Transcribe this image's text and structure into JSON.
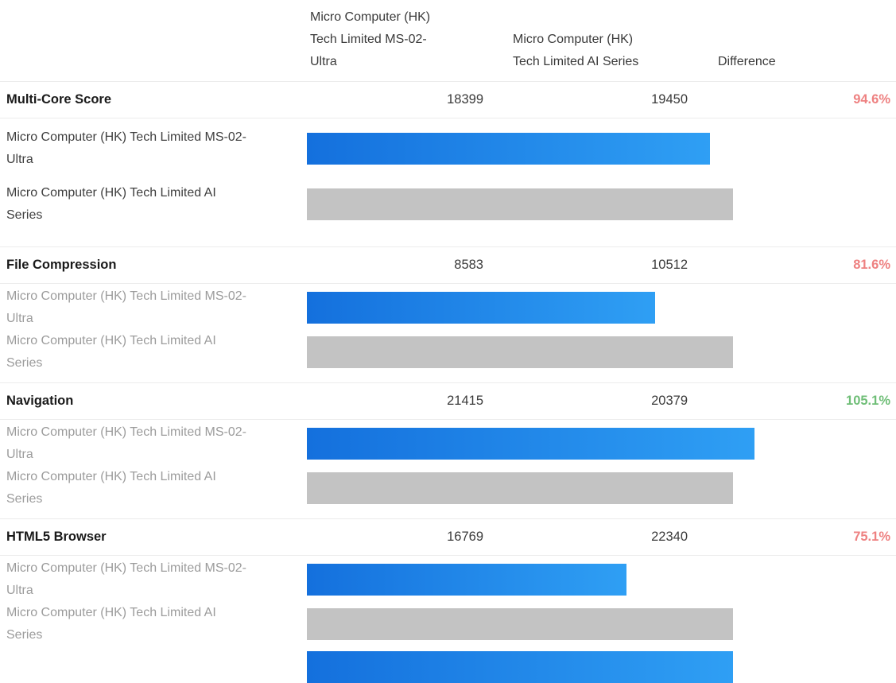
{
  "colors": {
    "blue_start": "#1470dd",
    "blue_end": "#2f9ff4",
    "gray_bar": "#c3c3c3",
    "diff_negative": "#ee8181",
    "diff_positive": "#6fbe77",
    "label_muted": "#9c9c9c"
  },
  "header": {
    "col1": "Micro Computer (HK) Tech Limited MS-02-Ultra",
    "col2": "Micro Computer (HK) Tech Limited AI Series",
    "col3": "Difference"
  },
  "device1": "Micro Computer (HK) Tech Limited MS-02-Ultra",
  "device2": "Micro Computer (HK) Tech Limited AI Series",
  "sections": [
    {
      "metric": "Multi-Core Score",
      "value1": "18399",
      "value2": "19450",
      "difference": "94.6%",
      "diff_type": "negative"
    },
    {
      "metric": "File Compression",
      "value1": "8583",
      "value2": "10512",
      "difference": "81.6%",
      "diff_type": "negative"
    },
    {
      "metric": "Navigation",
      "value1": "21415",
      "value2": "20379",
      "difference": "105.1%",
      "diff_type": "positive"
    },
    {
      "metric": "HTML5 Browser",
      "value1": "16769",
      "value2": "22340",
      "difference": "75.1%",
      "diff_type": "negative"
    }
  ],
  "chart_data": {
    "type": "bar",
    "orientation": "horizontal",
    "categories": [
      "Multi-Core Score",
      "File Compression",
      "Navigation",
      "HTML5 Browser"
    ],
    "series": [
      {
        "name": "Micro Computer (HK) Tech Limited MS-02-Ultra",
        "values": [
          18399,
          8583,
          21415,
          16769
        ]
      },
      {
        "name": "Micro Computer (HK) Tech Limited AI Series",
        "values": [
          19450,
          10512,
          20379,
          22340
        ]
      }
    ],
    "difference_percent": [
      94.6,
      81.6,
      105.1,
      75.1
    ],
    "bar_scaling": "second series rendered as fixed 100% baseline; first series width = value1/value2",
    "legend_position": "none",
    "grid": false
  }
}
